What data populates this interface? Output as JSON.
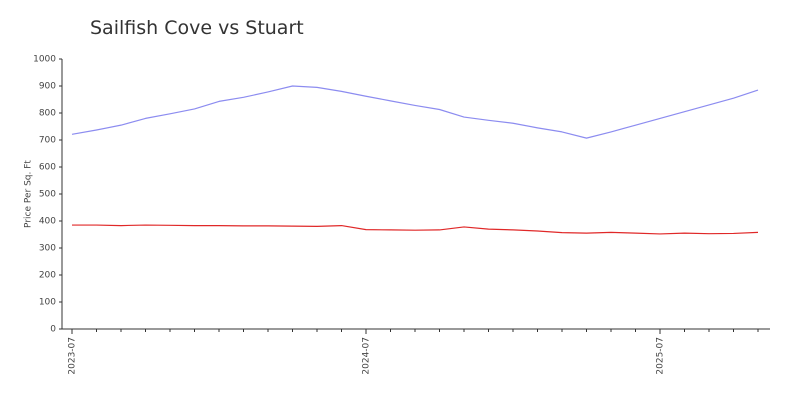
{
  "chart_data": {
    "type": "line",
    "title": "Sailfish Cove vs Stuart",
    "y_label": "Price Per Sq. Ft",
    "categories": [
      "2023-07",
      null,
      null,
      null,
      null,
      null,
      null,
      null,
      null,
      null,
      null,
      null,
      "2024-07",
      null,
      null,
      null,
      null,
      null,
      null,
      null,
      null,
      null,
      null,
      null,
      "2025-07",
      null,
      null,
      null,
      null
    ],
    "series": [
      {
        "color": "#8c8cf0",
        "values": [
          721,
          737,
          755,
          780,
          797,
          815,
          843,
          858,
          878,
          900,
          895,
          880,
          862,
          845,
          828,
          813,
          785,
          773,
          762,
          745,
          730,
          707,
          730,
          755,
          780,
          805,
          830,
          855,
          885
        ]
      },
      {
        "color": "#e02828",
        "values": [
          385,
          385,
          383,
          385,
          384,
          383,
          383,
          382,
          382,
          381,
          380,
          383,
          368,
          367,
          366,
          367,
          378,
          370,
          367,
          363,
          357,
          355,
          358,
          355,
          352,
          355,
          353,
          354,
          358
        ]
      }
    ],
    "ylim": [
      0,
      1000
    ],
    "yticks": [
      0,
      100,
      200,
      300,
      400,
      500,
      600,
      700,
      800,
      900,
      1000
    ]
  }
}
